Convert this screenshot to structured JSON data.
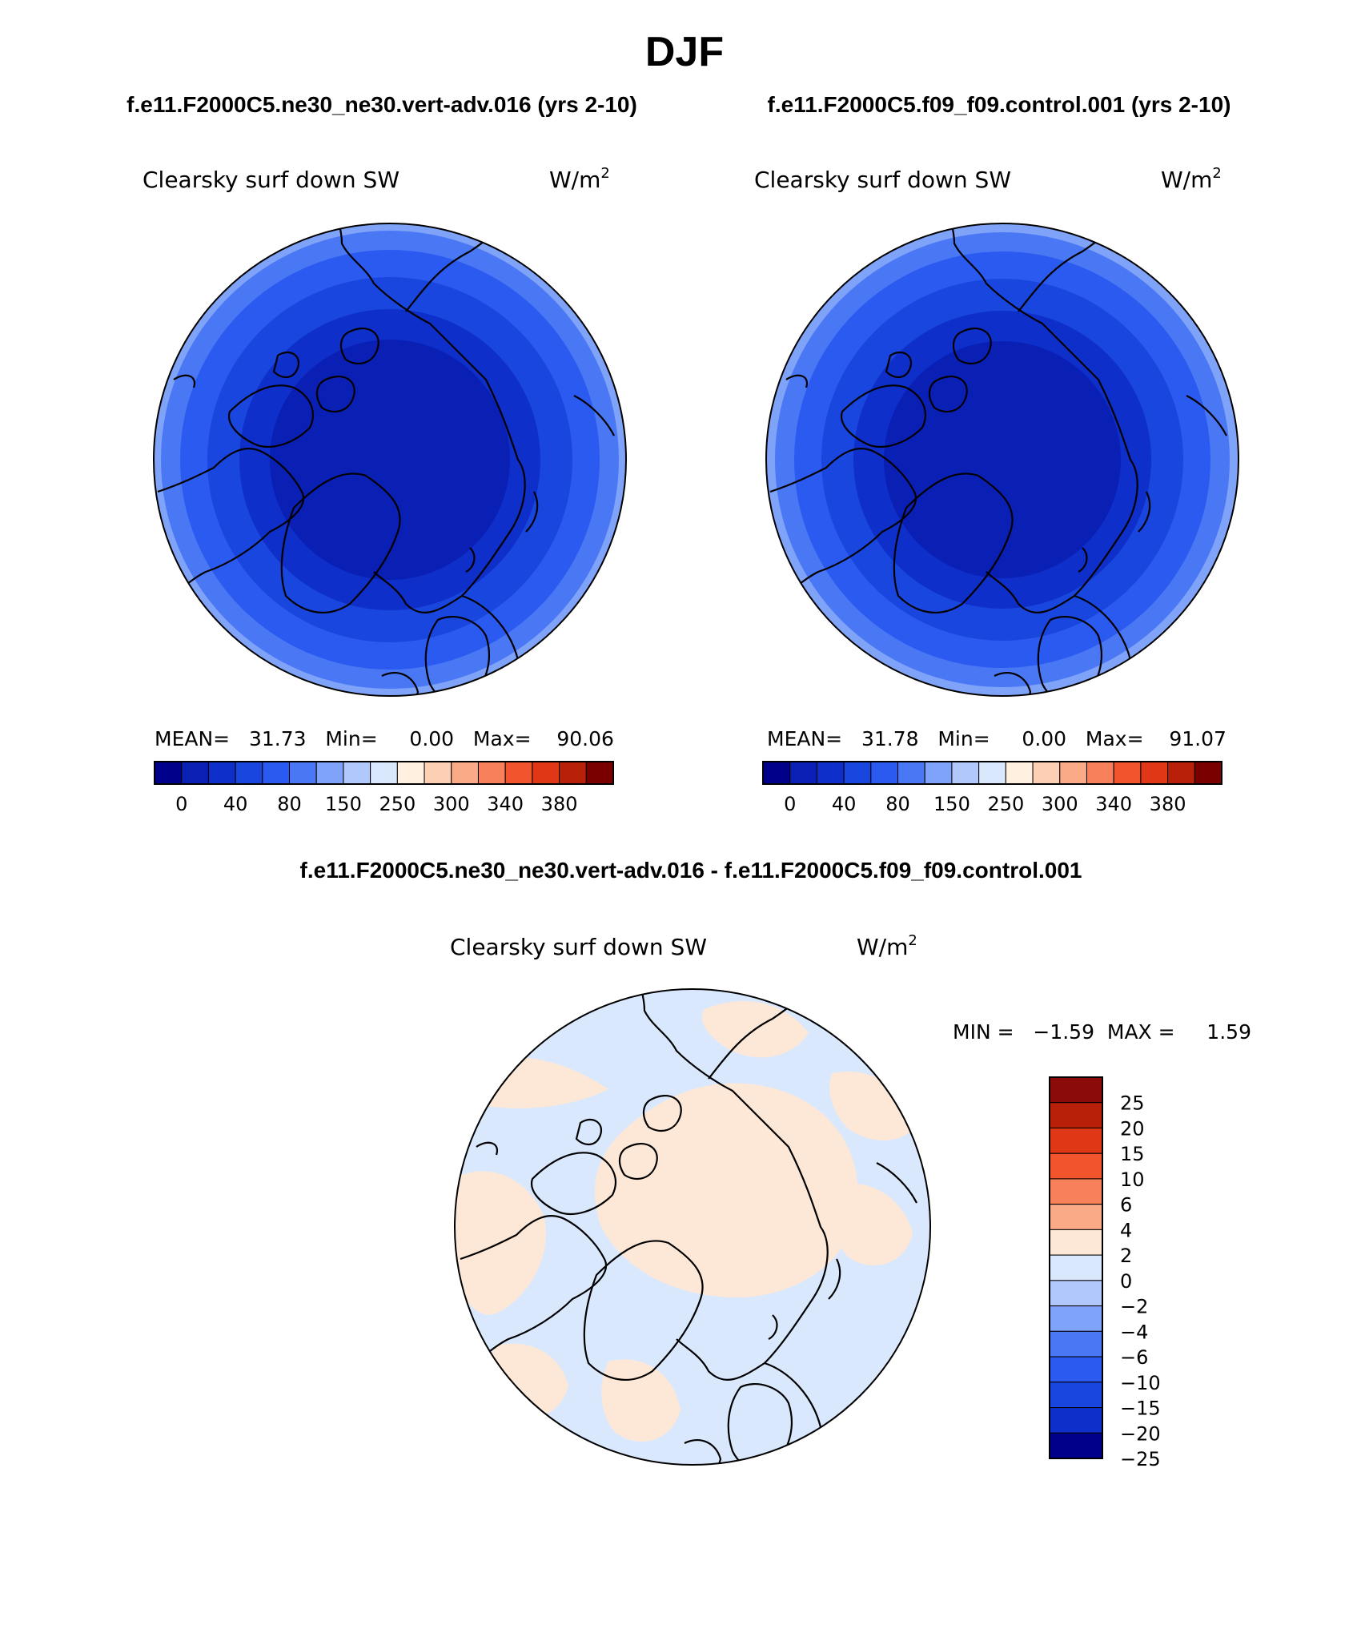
{
  "page": {
    "title": "DJF",
    "season": "DJF"
  },
  "panels": [
    {
      "case": "f.e11.F2000C5.ne30_ne30.vert-adv.016 (yrs 2-10)",
      "variable": "Clearsky surf down SW",
      "units": "W/m",
      "units_exp": "2",
      "stats": "MEAN=   31.73   Min=     0.00   Max=    90.06",
      "mean": 31.73,
      "min": 0.0,
      "max": 90.06,
      "bands": [
        "#0a1fb4",
        "#0e2fca",
        "#1a46e0",
        "#2b5af0",
        "#4a78f5",
        "#7fa3f8"
      ]
    },
    {
      "case": "f.e11.F2000C5.f09_f09.control.001 (yrs 2-10)",
      "variable": "Clearsky surf down SW",
      "units": "W/m",
      "units_exp": "2",
      "stats": "MEAN=   31.78   Min=     0.00   Max=    91.07",
      "mean": 31.78,
      "min": 0.0,
      "max": 91.07,
      "bands": [
        "#0a1fb4",
        "#0e2fca",
        "#1a46e0",
        "#2b5af0",
        "#4a78f5",
        "#7fa3f8"
      ]
    }
  ],
  "abs_colorbar": {
    "colors": [
      "#00008b",
      "#0a1fb4",
      "#0e2fca",
      "#1a46e0",
      "#2b5af0",
      "#4a78f5",
      "#7fa3f8",
      "#b0c8fb",
      "#d9e8fd",
      "#fff0e0",
      "#fdd0b5",
      "#fbaa88",
      "#f8805a",
      "#f2542e",
      "#e03816",
      "#b8200a",
      "#7a0000"
    ],
    "labels": [
      "0",
      "40",
      "80",
      "150",
      "250",
      "300",
      "340",
      "380"
    ]
  },
  "diff": {
    "title": "f.e11.F2000C5.ne30_ne30.vert-adv.016 - f.e11.F2000C5.f09_f09.control.001",
    "variable": "Clearsky surf down SW",
    "units": "W/m",
    "units_exp": "2",
    "stats": "MIN =   −1.59  MAX =     1.59",
    "min": -1.59,
    "max": 1.59,
    "ocean_color": "#d9e8fd",
    "positive_color": "#fde8d8"
  },
  "diff_colorbar": {
    "colors_top_to_bottom": [
      "#8b0a0a",
      "#b8200a",
      "#e03816",
      "#f2542e",
      "#f8805a",
      "#fbaa88",
      "#fde8d8",
      "#d9e8fd",
      "#b0c8fb",
      "#7fa3f8",
      "#4a78f5",
      "#2b5af0",
      "#1a46e0",
      "#0e2fca",
      "#00008b"
    ],
    "labels_top_to_bottom": [
      "25",
      "20",
      "15",
      "10",
      "6",
      "4",
      "2",
      "0",
      "−2",
      "−4",
      "−6",
      "−10",
      "−15",
      "−20",
      "−25"
    ]
  }
}
